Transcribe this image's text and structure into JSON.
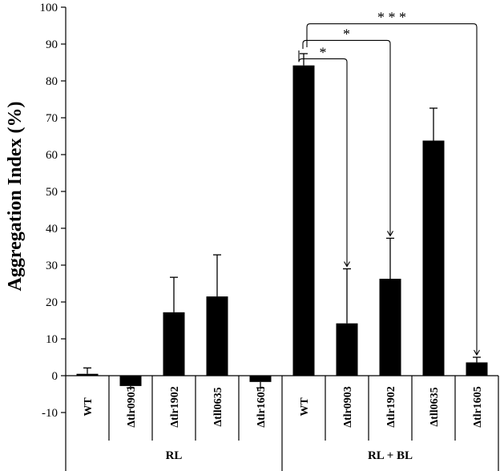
{
  "chart_data": {
    "type": "bar",
    "title": "",
    "ylabel": "Aggregation Index (%)",
    "xlabel": "",
    "ylim": [
      -10,
      100
    ],
    "yticks": [
      -10,
      0,
      10,
      20,
      30,
      40,
      50,
      60,
      70,
      80,
      90,
      100
    ],
    "grid": false,
    "legend": "none",
    "bar_color": "#000000",
    "categories": [
      "WT",
      "Δtlr0903",
      "Δtlr1902",
      "Δtll0635",
      "Δtlr1605",
      "WT",
      "Δtlr0903",
      "Δtlr1902",
      "Δtll0635",
      "Δtlr1605"
    ],
    "values": [
      0.5,
      -2.8,
      17.2,
      21.5,
      -1.7,
      84.2,
      14.2,
      26.3,
      63.8,
      3.6
    ],
    "errors": [
      1.6,
      0.5,
      9.5,
      11.3,
      1.6,
      3.2,
      14.8,
      11.0,
      8.8,
      1.4
    ],
    "groups": [
      {
        "label": "RL",
        "start": 0,
        "end": 4
      },
      {
        "label": "RL + BL",
        "start": 5,
        "end": 9
      }
    ],
    "significance": [
      {
        "from": 5,
        "to": 6,
        "label": "*",
        "level": 86
      },
      {
        "from": 5,
        "to": 7,
        "label": "*",
        "level": 91
      },
      {
        "from": 5,
        "to": 9,
        "label": "* * *",
        "level": 95.5
      }
    ]
  }
}
